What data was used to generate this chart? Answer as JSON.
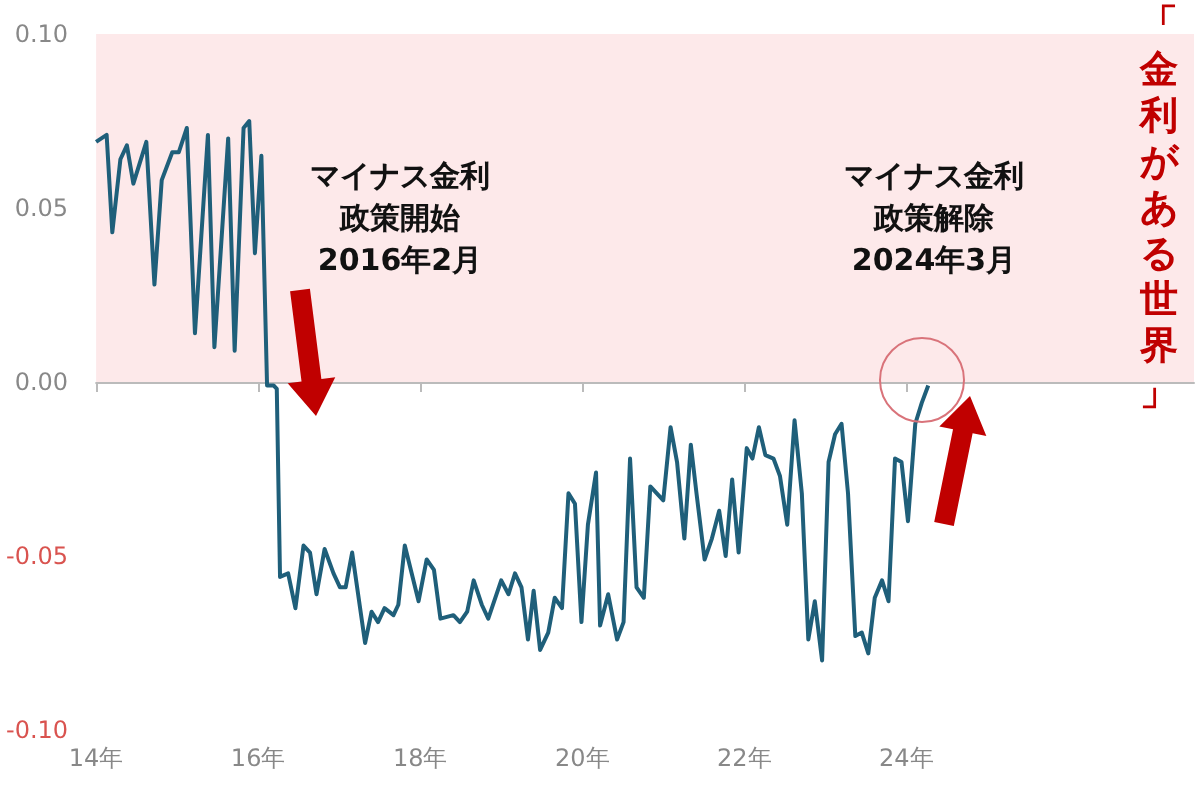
{
  "chart_data": {
    "type": "line",
    "xlim": [
      14,
      27.55
    ],
    "ylim": [
      -0.1,
      0.1
    ],
    "xticks": [
      {
        "value": 14,
        "label": "14年"
      },
      {
        "value": 16,
        "label": "16年"
      },
      {
        "value": 18,
        "label": "18年"
      },
      {
        "value": 20,
        "label": "20年"
      },
      {
        "value": 22,
        "label": "22年"
      },
      {
        "value": 24,
        "label": "24年"
      }
    ],
    "yticks": [
      {
        "value": -0.1,
        "label": "-0.10"
      },
      {
        "value": -0.05,
        "label": "-0.05"
      },
      {
        "value": 0,
        "label": "0.00"
      },
      {
        "value": 0.05,
        "label": "0.05"
      },
      {
        "value": 0.1,
        "label": "0.10"
      }
    ],
    "marker": "none",
    "line_style": "solid",
    "bands": [
      {
        "axis": "y",
        "from": 0,
        "to": 0.1,
        "label": "「金利がある世界」",
        "color": "#fde9ea"
      }
    ],
    "annotations": [
      "マイナス金利",
      "政策開始",
      "2016年2月",
      "マイナス金利",
      "政策解除",
      "2024年3月"
    ],
    "series": [
      {
        "color": "#1f5f7a",
        "x": [
          14.0,
          14.13,
          14.2,
          14.3,
          14.38,
          14.46,
          14.62,
          14.72,
          14.81,
          14.94,
          15.02,
          15.12,
          15.22,
          15.38,
          15.46,
          15.63,
          15.71,
          15.82,
          15.89,
          15.96,
          16.04,
          16.11,
          16.19,
          16.23,
          16.27,
          16.37,
          16.46,
          16.56,
          16.64,
          16.72,
          16.82,
          16.93,
          17.01,
          17.08,
          17.16,
          17.32,
          17.4,
          17.48,
          17.56,
          17.67,
          17.73,
          17.81,
          17.98,
          18.08,
          18.17,
          18.25,
          18.41,
          18.49,
          18.58,
          18.66,
          18.76,
          18.84,
          19.0,
          19.09,
          19.17,
          19.25,
          19.33,
          19.4,
          19.48,
          19.58,
          19.66,
          19.75,
          19.83,
          19.91,
          19.99,
          20.07,
          20.17,
          20.22,
          20.32,
          20.43,
          20.51,
          20.59,
          20.67,
          20.76,
          20.84,
          20.92,
          21.0,
          21.09,
          21.17,
          21.26,
          21.34,
          21.41,
          21.51,
          21.6,
          21.69,
          21.77,
          21.85,
          21.93,
          22.03,
          22.1,
          22.18,
          22.26,
          22.36,
          22.44,
          22.53,
          22.62,
          22.71,
          22.79,
          22.87,
          22.96,
          23.04,
          23.12,
          23.2,
          23.28,
          23.37,
          23.45,
          23.53,
          23.61,
          23.7,
          23.78,
          23.86,
          23.94,
          24.02,
          24.11,
          24.19,
          24.27
        ],
        "values": [
          0.069,
          0.071,
          0.043,
          0.064,
          0.068,
          0.057,
          0.069,
          0.028,
          0.058,
          0.066,
          0.066,
          0.073,
          0.014,
          0.071,
          0.01,
          0.07,
          0.009,
          0.073,
          0.075,
          0.037,
          0.065,
          -0.001,
          -0.001,
          -0.002,
          -0.056,
          -0.055,
          -0.065,
          -0.047,
          -0.049,
          -0.061,
          -0.048,
          -0.055,
          -0.059,
          -0.059,
          -0.049,
          -0.075,
          -0.066,
          -0.069,
          -0.065,
          -0.067,
          -0.064,
          -0.047,
          -0.063,
          -0.051,
          -0.054,
          -0.068,
          -0.067,
          -0.069,
          -0.066,
          -0.057,
          -0.064,
          -0.068,
          -0.057,
          -0.061,
          -0.055,
          -0.059,
          -0.074,
          -0.06,
          -0.077,
          -0.072,
          -0.062,
          -0.065,
          -0.032,
          -0.035,
          -0.069,
          -0.041,
          -0.026,
          -0.07,
          -0.061,
          -0.074,
          -0.069,
          -0.022,
          -0.059,
          -0.062,
          -0.03,
          -0.032,
          -0.034,
          -0.013,
          -0.023,
          -0.045,
          -0.018,
          -0.032,
          -0.051,
          -0.045,
          -0.037,
          -0.05,
          -0.028,
          -0.049,
          -0.019,
          -0.022,
          -0.013,
          -0.021,
          -0.022,
          -0.027,
          -0.041,
          -0.011,
          -0.032,
          -0.074,
          -0.063,
          -0.08,
          -0.023,
          -0.015,
          -0.012,
          -0.032,
          -0.073,
          -0.072,
          -0.078,
          -0.062,
          -0.057,
          -0.063,
          -0.022,
          -0.023,
          -0.04,
          -0.012,
          -0.006,
          -0.001
        ]
      }
    ]
  }
}
